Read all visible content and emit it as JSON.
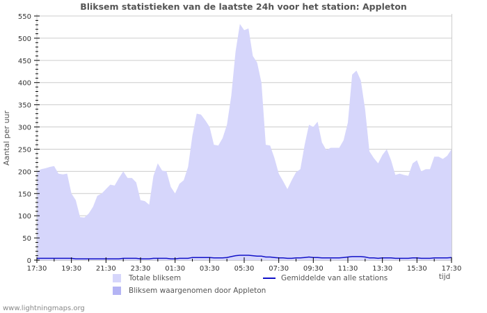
{
  "title": "Bliksem statistieken van de laatste 24h voor het station: Appleton",
  "watermark": "www.lightningmaps.org",
  "colors": {
    "total_fill": "#d6d6fb",
    "station_fill": "#b4b4f4",
    "average_line": "#1010c8",
    "grid": "#cccccc",
    "axis": "#888888",
    "text": "#555555"
  },
  "legend": {
    "total": "Totale bliksem",
    "station": "Bliksem waargenomen door Appleton",
    "average": "Gemiddelde van alle stations"
  },
  "chart_data": {
    "type": "area",
    "title": "Bliksem statistieken van de laatste 24h voor het station: Appleton",
    "xlabel": "tijd",
    "ylabel": "Aantal per uur",
    "ylim": [
      0,
      550
    ],
    "yticks": [
      0,
      50,
      100,
      150,
      200,
      250,
      300,
      350,
      400,
      450,
      500,
      550
    ],
    "xtick_labels": [
      "17:30",
      "19:30",
      "21:30",
      "23:30",
      "01:30",
      "03:30",
      "05:30",
      "07:30",
      "09:30",
      "11:30",
      "13:30",
      "15:30",
      "17:30"
    ],
    "grid": true,
    "legend_position": "bottom",
    "x_interval_minutes": 15,
    "series": [
      {
        "name": "Totale bliksem",
        "style": "area",
        "values": [
          200,
          205,
          207,
          210,
          212,
          195,
          193,
          195,
          150,
          135,
          97,
          96,
          105,
          120,
          145,
          150,
          160,
          170,
          168,
          185,
          200,
          185,
          185,
          175,
          135,
          133,
          125,
          190,
          218,
          202,
          200,
          165,
          150,
          172,
          180,
          210,
          280,
          330,
          328,
          315,
          300,
          260,
          258,
          275,
          305,
          370,
          470,
          532,
          518,
          522,
          460,
          445,
          400,
          260,
          258,
          230,
          195,
          178,
          160,
          180,
          198,
          205,
          260,
          305,
          300,
          312,
          265,
          248,
          253,
          253,
          253,
          270,
          310,
          418,
          427,
          405,
          340,
          245,
          230,
          218,
          237,
          250,
          225,
          192,
          195,
          192,
          190,
          218,
          225,
          200,
          205,
          205,
          233,
          233,
          228,
          235,
          250
        ]
      },
      {
        "name": "Bliksem waargenomen door Appleton",
        "style": "area",
        "values": [
          0,
          0,
          0,
          0,
          0,
          0,
          0,
          0,
          0,
          0,
          0,
          0,
          0,
          0,
          0,
          0,
          0,
          0,
          0,
          0,
          0,
          0,
          0,
          0,
          0,
          0,
          0,
          0,
          0,
          0,
          0,
          0,
          0,
          0,
          0,
          0,
          0,
          0,
          0,
          0,
          0,
          0,
          0,
          0,
          0,
          0,
          0,
          0,
          0,
          0,
          0,
          0,
          0,
          0,
          0,
          0,
          0,
          0,
          0,
          0,
          0,
          0,
          0,
          0,
          0,
          0,
          0,
          0,
          0,
          0,
          0,
          0,
          0,
          0,
          0,
          0,
          0,
          0,
          0,
          0,
          0,
          0,
          0,
          0,
          0,
          0,
          0,
          0,
          0,
          0,
          0,
          0,
          0,
          0,
          0,
          0,
          0
        ]
      },
      {
        "name": "Gemiddelde van alle stations",
        "style": "line",
        "values": [
          4,
          4,
          4,
          4,
          4,
          4,
          4,
          4,
          4,
          3,
          3,
          3,
          3,
          3,
          3,
          3,
          3,
          3,
          3,
          3,
          4,
          4,
          4,
          4,
          3,
          3,
          3,
          4,
          4,
          4,
          4,
          3,
          3,
          4,
          4,
          4,
          6,
          6,
          6,
          6,
          6,
          5,
          5,
          5,
          6,
          8,
          10,
          11,
          11,
          11,
          10,
          9,
          9,
          7,
          7,
          6,
          5,
          5,
          4,
          4,
          5,
          5,
          6,
          7,
          6,
          6,
          5,
          5,
          5,
          5,
          5,
          6,
          7,
          8,
          8,
          8,
          7,
          5,
          5,
          4,
          5,
          5,
          5,
          4,
          4,
          4,
          4,
          5,
          5,
          4,
          4,
          4,
          5,
          5,
          5,
          5,
          6
        ]
      }
    ]
  }
}
